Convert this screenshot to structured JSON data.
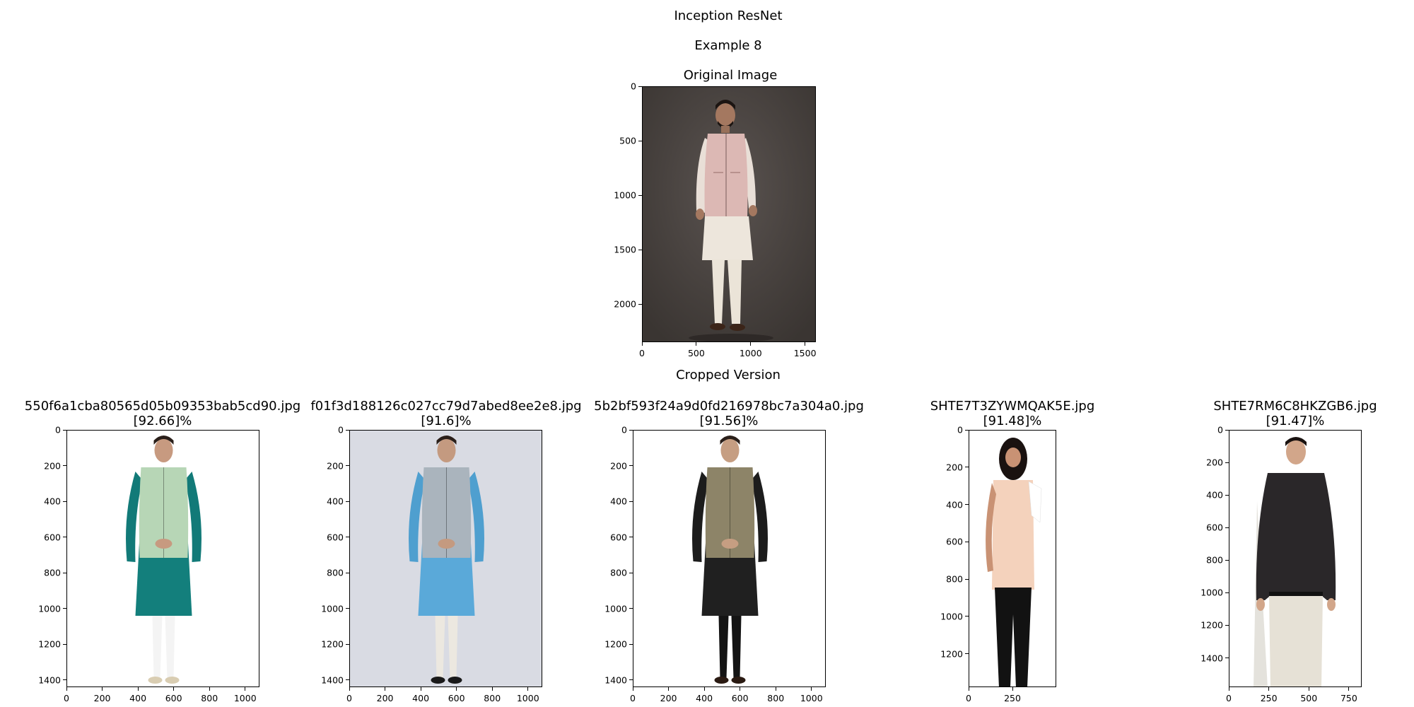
{
  "header": {
    "title": "Inception ResNet",
    "example": "Example 8",
    "original_title": "Original Image",
    "cropped_title": "Cropped Version"
  },
  "original": {
    "bg": "#4a4441",
    "x_ticks": [
      "0",
      "500",
      "1000",
      "1500"
    ],
    "y_ticks": [
      "0",
      "500",
      "1000",
      "1500",
      "2000"
    ],
    "x_max": 1600,
    "y_max": 2350
  },
  "results": [
    {
      "filename": "550f6a1cba80565d05b09353bab5cd90.jpg",
      "score": "[92.66]%",
      "bg": "#ffffff",
      "x_ticks": [
        "0",
        "200",
        "400",
        "600",
        "800",
        "1000"
      ],
      "y_ticks": [
        "0",
        "200",
        "400",
        "600",
        "800",
        "1000",
        "1200",
        "1400"
      ],
      "x_max": 1080,
      "y_max": 1440
    },
    {
      "filename": "f01f3d188126c027cc79d7abed8ee2e8.jpg",
      "score": "[91.6]%",
      "bg": "#d9dbe3",
      "x_ticks": [
        "0",
        "200",
        "400",
        "600",
        "800",
        "1000"
      ],
      "y_ticks": [
        "0",
        "200",
        "400",
        "600",
        "800",
        "1000",
        "1200",
        "1400"
      ],
      "x_max": 1080,
      "y_max": 1440
    },
    {
      "filename": "5b2bf593f24a9d0fd216978bc7a304a0.jpg",
      "score": "[91.56]%",
      "bg": "#ffffff",
      "x_ticks": [
        "0",
        "200",
        "400",
        "600",
        "800",
        "1000"
      ],
      "y_ticks": [
        "0",
        "200",
        "400",
        "600",
        "800",
        "1000",
        "1200",
        "1400"
      ],
      "x_max": 1080,
      "y_max": 1440
    },
    {
      "filename": "SHTE7T3ZYWMQAK5E.jpg",
      "score": "[91.48]%",
      "bg": "#ffffff",
      "x_ticks": [
        "0",
        "250"
      ],
      "y_ticks": [
        "0",
        "200",
        "400",
        "600",
        "800",
        "1000",
        "1200"
      ],
      "x_max": 500,
      "y_max": 1380
    },
    {
      "filename": "SHTE7RM6C8HKZGB6.jpg",
      "score": "[91.47]%",
      "bg": "#ffffff",
      "x_ticks": [
        "0",
        "250",
        "500",
        "750"
      ],
      "y_ticks": [
        "0",
        "200",
        "400",
        "600",
        "800",
        "1000",
        "1200",
        "1400"
      ],
      "x_max": 830,
      "y_max": 1580
    }
  ]
}
